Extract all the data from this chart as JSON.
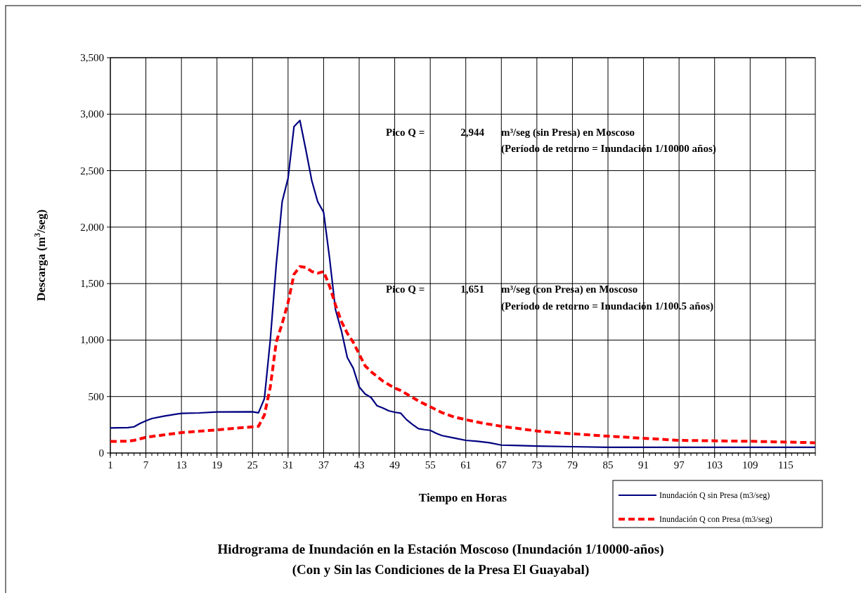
{
  "chart_data": {
    "type": "line",
    "title": "Hidrograma de Inundación en la Estación Moscoso (Inundación 1/10000-años)",
    "subtitle": "(Con y Sin las Condiciones de la Presa  El Guayabal)",
    "xlabel": "Tiempo en Horas",
    "ylabel": "Descarga (m$^{3}$/seg)",
    "xlim": [
      1,
      120
    ],
    "xticks": [
      1,
      7,
      13,
      19,
      25,
      31,
      37,
      43,
      49,
      55,
      61,
      67,
      73,
      79,
      85,
      91,
      97,
      103,
      109,
      115
    ],
    "ylim": [
      0,
      3500
    ],
    "yticks": [
      0,
      500,
      {
        "value": 1000,
        "label": "1,000"
      },
      {
        "value": 1500,
        "label": "1,500"
      },
      {
        "value": 2000,
        "label": "2,000"
      },
      {
        "value": 2500,
        "label": "2,500"
      },
      {
        "value": 3000,
        "label": "3,000"
      },
      {
        "value": 3500,
        "label": "3,500"
      }
    ],
    "grid": true,
    "legend": "bottom right",
    "series": [
      {
        "name": "Inundación Q sin Presa (m3/seg)",
        "color": "#000080",
        "line_style": "solid",
        "x": [
          1,
          4,
          5,
          6,
          7,
          8,
          10,
          13,
          16,
          19,
          25,
          26,
          27,
          28,
          29,
          30,
          31,
          32,
          33,
          34,
          35,
          36,
          37,
          38,
          39,
          40,
          41,
          42,
          43,
          44,
          45,
          46,
          47,
          48,
          49,
          50,
          51,
          52,
          53,
          54,
          55,
          56,
          57,
          59,
          61,
          63,
          65,
          67,
          70,
          73,
          79,
          85,
          120
        ],
        "values": [
          222,
          225,
          232,
          262,
          285,
          305,
          326,
          351,
          355,
          363,
          365,
          356,
          481,
          1000,
          1665,
          2225,
          2433,
          2889,
          2944,
          2684,
          2412,
          2225,
          2132,
          1727,
          1270,
          1083,
          845,
          751,
          585,
          523,
          492,
          419,
          398,
          374,
          361,
          353,
          295,
          253,
          216,
          207,
          201,
          174,
          154,
          133,
          112,
          104,
          91,
          70,
          66,
          62,
          56,
          50,
          50
        ]
      },
      {
        "name": "Inundación Q con Presa (m3/seg)",
        "color": "#ff0000",
        "line_style": "dashed",
        "x": [
          1,
          4,
          5,
          7,
          10,
          13,
          19,
          25,
          26,
          27,
          28,
          29,
          30,
          31,
          32,
          33,
          34,
          35,
          36,
          37,
          38,
          39,
          40,
          41,
          42,
          43,
          44,
          45,
          46,
          47,
          48,
          49,
          50,
          51,
          52,
          53,
          55,
          57,
          59,
          61,
          64,
          67,
          70,
          73,
          75,
          85,
          97,
          109,
          120
        ],
        "values": [
          102,
          105,
          112,
          139,
          160,
          181,
          205,
          232,
          236,
          336,
          585,
          980,
          1146,
          1333,
          1582,
          1651,
          1644,
          1607,
          1592,
          1607,
          1478,
          1312,
          1166,
          1060,
          980,
          876,
          772,
          720,
          679,
          637,
          606,
          575,
          554,
          523,
          492,
          461,
          409,
          357,
          320,
          295,
          263,
          237,
          216,
          195,
          185,
          149,
          112,
          104,
          91
        ]
      }
    ],
    "annotations": [
      "Pico Q =",
      "2,944",
      "m³/seg (sin Presa) en Moscoso",
      "(Período de retorno = Inundación 1/10000 años)",
      "Pico Q =",
      "1,651",
      "m³/seg (con Presa) en Moscoso",
      "(Período de retorno = Inundación 1/100.5 años)"
    ]
  }
}
